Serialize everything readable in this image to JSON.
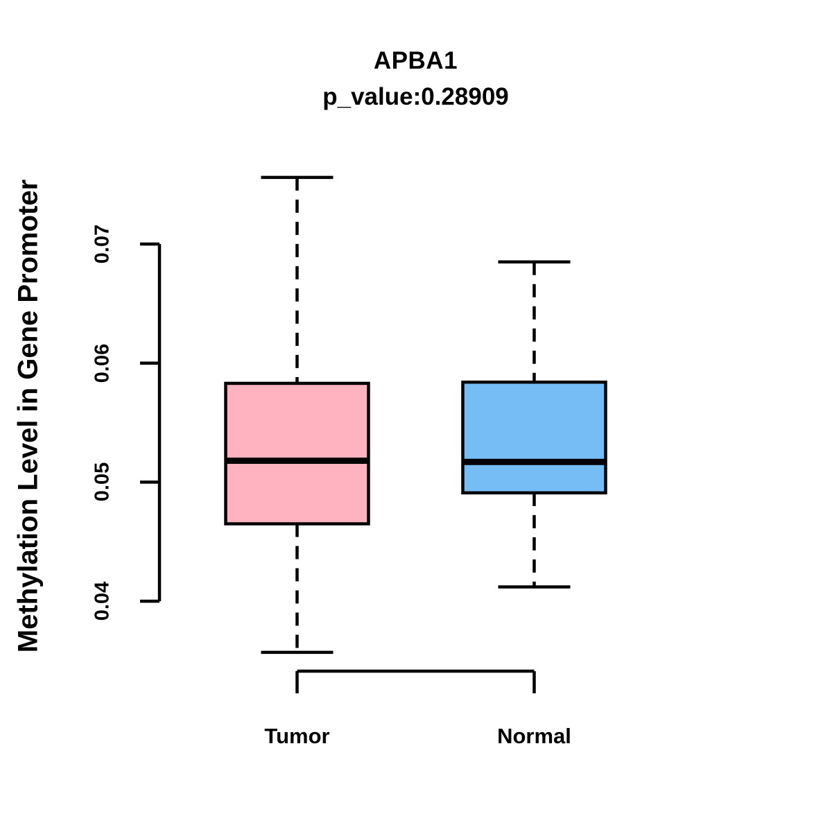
{
  "figure": {
    "background_color": "#FFFFFF",
    "text_color": "#000000"
  },
  "chart_data": {
    "type": "box",
    "title": "APBA1",
    "subtitle": "p_value:0.28909",
    "xlabel": "",
    "ylabel": "Methylation Level in Gene Promoter",
    "categories": [
      "Tumor",
      "Normal"
    ],
    "ytick_labels": [
      "0.04",
      "0.05",
      "0.06",
      "0.07"
    ],
    "yticks": [
      0.04,
      0.05,
      0.06,
      0.07
    ],
    "ylim": [
      0.034,
      0.078
    ],
    "grid": false,
    "legend_position": "none",
    "groups": [
      {
        "label": "Tumor",
        "fill_color": "#FFB3C1",
        "stats": {
          "whisker_low": 0.0357,
          "q1": 0.0465,
          "median": 0.0518,
          "q3": 0.0583,
          "whisker_high": 0.0756
        }
      },
      {
        "label": "Normal",
        "fill_color": "#76BDF5",
        "stats": {
          "whisker_low": 0.0412,
          "q1": 0.0491,
          "median": 0.0517,
          "q3": 0.0584,
          "whisker_high": 0.0685
        }
      }
    ],
    "colors": {
      "axis": "#000000",
      "box_border": "#000000",
      "median_line": "#000000",
      "whisker": "#000000"
    },
    "style_notes": {
      "whisker_line_style": "dashed",
      "box_border_style": "solid"
    }
  }
}
